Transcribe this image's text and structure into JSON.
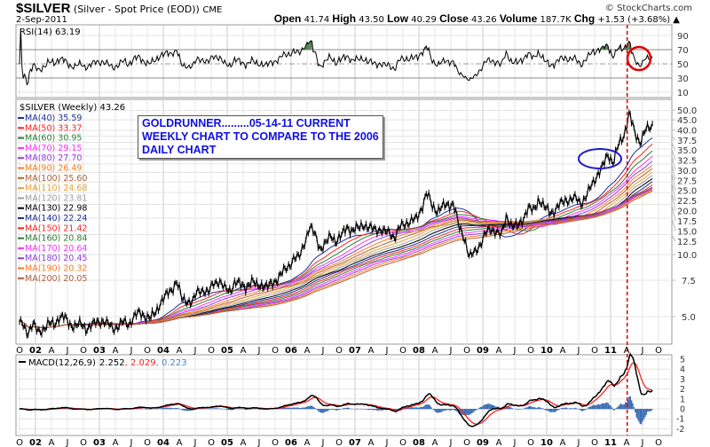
{
  "header": {
    "symbol": "$SILVER",
    "description": "(Silver - Spot Price (EOD))",
    "exchange": "CME",
    "date": "2-Sep-2011",
    "copyright": "© StockCharts.com",
    "open_label": "Open",
    "open": "41.74",
    "high_label": "High",
    "high": "43.50",
    "low_label": "Low",
    "low": "40.29",
    "close_label": "Close",
    "close": "43.26",
    "volume_label": "Volume",
    "volume": "187.7K",
    "chg_label": "Chg",
    "chg": "+1.53 (+3.68%) ▲"
  },
  "rsi_panel": {
    "label": "RSI(14) 63.19",
    "ticks": [
      "90",
      "70",
      "50",
      "30",
      "10"
    ]
  },
  "price_panel": {
    "label": "$SILVER (Weekly) 43.26",
    "annotation": [
      "GOLDRUNNER.........05-14-11 CURRENT",
      "WEEKLY CHART TO COMPARE TO THE 2006",
      "DAILY CHART"
    ],
    "ticks": [
      "50.0",
      "45.0",
      "40.0",
      "37.5",
      "35.0",
      "32.5",
      "30.0",
      "27.5",
      "25.0",
      "22.5",
      "20.0",
      "17.5",
      "15.0",
      "12.5",
      "10.0",
      "7.5",
      "5.0"
    ],
    "moving_averages": [
      {
        "label": "MA(40) 35.59",
        "color": "#1f2f9a"
      },
      {
        "label": "MA(50) 33.37",
        "color": "#ff2020"
      },
      {
        "label": "MA(60) 30.95",
        "color": "#2e7d32"
      },
      {
        "label": "MA(70) 29.15",
        "color": "#ff30ff"
      },
      {
        "label": "MA(80) 27.70",
        "color": "#9040e0"
      },
      {
        "label": "MA(90) 26.49",
        "color": "#ff7a1a"
      },
      {
        "label": "MA(100) 25.60",
        "color": "#b0603a"
      },
      {
        "label": "MA(110) 24.68",
        "color": "#e8a030"
      },
      {
        "label": "MA(120) 23.81",
        "color": "#a0a0a0"
      },
      {
        "label": "MA(130) 22.98",
        "color": "#000000"
      },
      {
        "label": "MA(140) 22.24",
        "color": "#1f2f9a"
      },
      {
        "label": "MA(150) 21.42",
        "color": "#ff2020"
      },
      {
        "label": "MA(160) 20.84",
        "color": "#2e7d32"
      },
      {
        "label": "MA(170) 20.64",
        "color": "#ff30ff"
      },
      {
        "label": "MA(180) 20.45",
        "color": "#9040e0"
      },
      {
        "label": "MA(190) 20.32",
        "color": "#ff7a1a"
      },
      {
        "label": "MA(200) 20.05",
        "color": "#b0603a"
      }
    ]
  },
  "macd_panel": {
    "label": "MACD(12,26,9)",
    "macd": "2.252",
    "signal": ", 2.029",
    "hist": ", 0.223",
    "ticks": [
      "5",
      "4",
      "3",
      "2",
      "1",
      "0",
      "-1",
      "-2"
    ]
  },
  "x_labels": [
    "O",
    "02",
    "A",
    "J",
    "O",
    "03",
    "A",
    "J",
    "O",
    "04",
    "A",
    "J",
    "O",
    "05",
    "A",
    "J",
    "O",
    "06",
    "A",
    "J",
    "O",
    "07",
    "A",
    "J",
    "O",
    "08",
    "A",
    "J",
    "O",
    "09",
    "A",
    "J",
    "O",
    "10",
    "A",
    "J",
    "O",
    "11",
    "A",
    "J",
    "O"
  ],
  "chart_data": {
    "type": "line",
    "title": "$SILVER (Silver - Spot Price (EOD)) CME",
    "frequency": "weekly",
    "x_start": "2001-10",
    "x_end": "2011-09-02",
    "y_scale": "log",
    "ylim": [
      4,
      52
    ],
    "price_monthly_start": "2001-10",
    "price_monthly": [
      4.6,
      4.2,
      4.6,
      4.2,
      4.4,
      4.6,
      4.6,
      5.0,
      4.9,
      4.6,
      4.5,
      4.6,
      4.4,
      4.5,
      4.7,
      4.8,
      4.6,
      4.4,
      4.5,
      4.7,
      4.6,
      5.0,
      5.2,
      5.1,
      4.9,
      5.2,
      5.9,
      6.3,
      6.7,
      7.5,
      6.0,
      6.0,
      5.9,
      6.6,
      6.8,
      6.5,
      7.3,
      7.5,
      6.8,
      6.7,
      7.4,
      7.1,
      7.0,
      7.4,
      7.1,
      7.2,
      6.9,
      7.3,
      7.7,
      8.2,
      8.8,
      9.6,
      9.6,
      11.5,
      13.5,
      12.5,
      10.7,
      11.2,
      12.5,
      11.6,
      12.3,
      13.8,
      12.9,
      13.4,
      14.2,
      13.3,
      13.4,
      13.3,
      12.8,
      12.9,
      12.1,
      13.6,
      14.3,
      14.5,
      14.8,
      16.9,
      19.8,
      17.2,
      16.4,
      17.0,
      17.5,
      17.7,
      13.5,
      12.2,
      9.7,
      10.2,
      11.3,
      12.6,
      13.2,
      13.1,
      12.3,
      15.5,
      13.7,
      13.6,
      14.9,
      16.7,
      16.3,
      18.7,
      16.9,
      16.2,
      16.3,
      17.4,
      18.6,
      18.4,
      18.7,
      17.9,
      19.2,
      21.8,
      24.5,
      26.5,
      30.6,
      28.1,
      33.8,
      37.8,
      48.6,
      38.5,
      35.3,
      40.0,
      41.0,
      43.26
    ],
    "rsi": {
      "period": 14,
      "last": 63.19,
      "levels": [
        70,
        50,
        30
      ],
      "ylim": [
        0,
        100
      ]
    },
    "macd": {
      "fast": 12,
      "slow": 26,
      "signal": 9,
      "last": [
        2.252,
        2.029,
        0.223
      ],
      "ylim": [
        -2.5,
        5.7
      ]
    },
    "ma_periods": [
      40,
      50,
      60,
      70,
      80,
      90,
      100,
      110,
      120,
      130,
      140,
      150,
      160,
      170,
      180,
      190,
      200
    ],
    "grid": true,
    "marker_date": "2011-04",
    "colors": {
      "price": "#000000",
      "macd": "#000000",
      "signal": "#ff2020",
      "hist": "#3a6db5",
      "marker": "#e00000",
      "rsi_fill": "#4f7f4f",
      "circle_blue": "#1c1ccf",
      "circle_red": "#e00000"
    }
  }
}
